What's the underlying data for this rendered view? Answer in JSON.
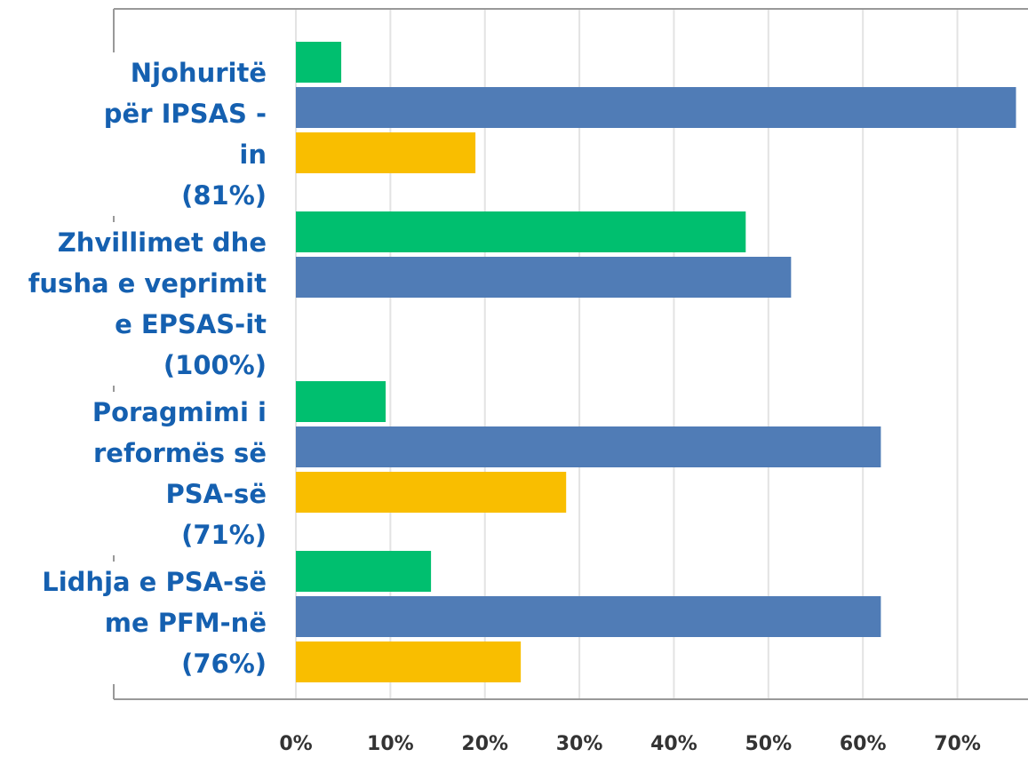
{
  "chart_data": {
    "type": "barh",
    "categories": [
      "Njohuritë\npër IPSAS -\nin\n(81%)",
      "Zhvillimet dhe\nfusha e veprimit\ne EPSAS-it\n(100%)",
      "Poragmimi i\nreformës së\nPSA-së\n(71%)",
      "Lidhja e PSA-së\nme PFM-në\n(76%)"
    ],
    "series": [
      {
        "color": "#00bf6f",
        "values": [
          4.8,
          47.6,
          9.5,
          14.3
        ]
      },
      {
        "color": "#507cb6",
        "values": [
          76.2,
          52.4,
          61.9,
          61.9
        ]
      },
      {
        "color": "#f9be00",
        "values": [
          19.0,
          0,
          28.6,
          23.8
        ]
      }
    ],
    "xlim": [
      0,
      77
    ],
    "xticks": [
      {
        "value": 0,
        "label": "0%"
      },
      {
        "value": 10,
        "label": "10%"
      },
      {
        "value": 20,
        "label": "20%"
      },
      {
        "value": 30,
        "label": "30%"
      },
      {
        "value": 40,
        "label": "40%"
      },
      {
        "value": 50,
        "label": "50%"
      },
      {
        "value": 60,
        "label": "60%"
      },
      {
        "value": 70,
        "label": "70%"
      }
    ],
    "grid": true
  }
}
